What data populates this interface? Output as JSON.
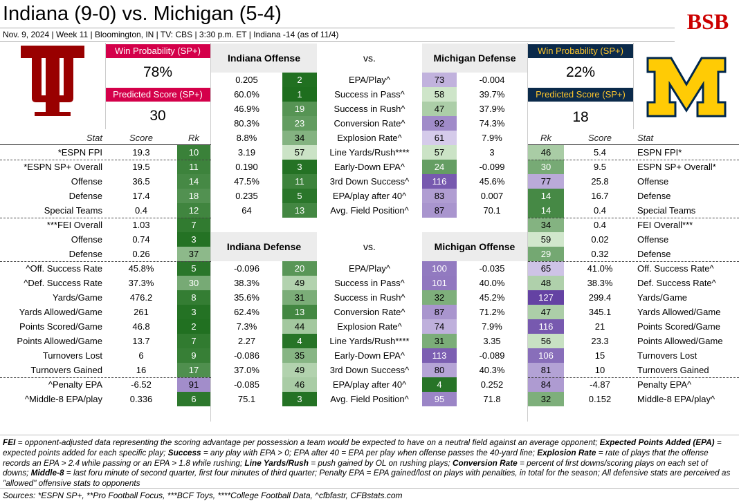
{
  "header": {
    "title": "Indiana (9-0) vs. Michigan (5-4)",
    "subtitle": "Nov. 9, 2024 | Week 11 | Bloomington, IN | TV: CBS | 3:30 p.m. ET | Indiana -14 (as of 11/4)",
    "logo_text": "BSB"
  },
  "indiana": {
    "win_prob_label": "Win Probability (SP+)",
    "win_prob": "78%",
    "pred_label": "Predicted Score (SP+)",
    "pred_score": "30",
    "color": "#990000"
  },
  "michigan": {
    "win_prob_label": "Win Probability (SP+)",
    "win_prob": "22%",
    "pred_label": "Predicted Score (SP+)",
    "pred_score": "18",
    "color": "#ffcb05"
  },
  "left_headers": {
    "stat": "Stat",
    "score": "Score",
    "rk": "Rk"
  },
  "right_headers": {
    "rk": "Rk",
    "score": "Score",
    "stat": "Stat"
  },
  "left_stats": [
    {
      "stat": "*ESPN FPI",
      "score": "19.3",
      "rk": "10"
    },
    {
      "stat": "*ESPN SP+ Overall",
      "score": "19.5",
      "rk": "11"
    },
    {
      "stat": "Offense",
      "score": "36.5",
      "rk": "14"
    },
    {
      "stat": "Defense",
      "score": "17.4",
      "rk": "18"
    },
    {
      "stat": "Special Teams",
      "score": "0.4",
      "rk": "12"
    },
    {
      "stat": "***FEI Overall",
      "score": "1.03",
      "rk": "7"
    },
    {
      "stat": "Offense",
      "score": "0.74",
      "rk": "3"
    },
    {
      "stat": "Defense",
      "score": "0.26",
      "rk": "37"
    },
    {
      "stat": "^Off. Success Rate",
      "score": "45.8%",
      "rk": "5"
    },
    {
      "stat": "^Def. Success Rate",
      "score": "37.3%",
      "rk": "30"
    },
    {
      "stat": "Yards/Game",
      "score": "476.2",
      "rk": "8"
    },
    {
      "stat": "Yards Allowed/Game",
      "score": "261",
      "rk": "3"
    },
    {
      "stat": "Points Scored/Game",
      "score": "46.8",
      "rk": "2"
    },
    {
      "stat": "Points Allowed/Game",
      "score": "13.7",
      "rk": "7"
    },
    {
      "stat": "Turnovers Lost",
      "score": "6",
      "rk": "9"
    },
    {
      "stat": "Turnovers Gained",
      "score": "16",
      "rk": "17"
    },
    {
      "stat": "^Penalty EPA",
      "score": "-6.52",
      "rk": "91"
    },
    {
      "stat": "^Middle-8 EPA/play",
      "score": "0.336",
      "rk": "6"
    }
  ],
  "right_stats": [
    {
      "stat": "ESPN FPI*",
      "score": "5.4",
      "rk": "46"
    },
    {
      "stat": "ESPN SP+ Overall*",
      "score": "9.5",
      "rk": "30"
    },
    {
      "stat": "Offense",
      "score": "25.8",
      "rk": "77"
    },
    {
      "stat": "Defense",
      "score": "16.7",
      "rk": "14"
    },
    {
      "stat": "Special Teams",
      "score": "0.4",
      "rk": "14"
    },
    {
      "stat": "FEI Overall***",
      "score": "0.4",
      "rk": "34"
    },
    {
      "stat": "Offense",
      "score": "0.02",
      "rk": "59"
    },
    {
      "stat": "Defense",
      "score": "0.32",
      "rk": "29"
    },
    {
      "stat": "Off. Success Rate^",
      "score": "41.0%",
      "rk": "65"
    },
    {
      "stat": "Def. Success Rate^",
      "score": "38.3%",
      "rk": "48"
    },
    {
      "stat": "Yards/Game",
      "score": "299.4",
      "rk": "127"
    },
    {
      "stat": "Yards Allowed/Game",
      "score": "345.1",
      "rk": "47"
    },
    {
      "stat": "Points Scored/Game",
      "score": "21",
      "rk": "116"
    },
    {
      "stat": "Points Allowed/Game",
      "score": "23.3",
      "rk": "56"
    },
    {
      "stat": "Turnovers Lost",
      "score": "15",
      "rk": "106"
    },
    {
      "stat": "Turnovers Gained",
      "score": "10",
      "rk": "81"
    },
    {
      "stat": "Penalty EPA^",
      "score": "-4.87",
      "rk": "84"
    },
    {
      "stat": "Middle-8 EPA/play^",
      "score": "0.152",
      "rk": "32"
    }
  ],
  "matchup1": {
    "left_title": "Indiana Offense",
    "vs": "vs.",
    "right_title": "Michigan Defense",
    "rows": [
      {
        "lval": "0.205",
        "lrk": "2",
        "stat": "EPA/Play^",
        "rrk": "73",
        "rval": "-0.004"
      },
      {
        "lval": "60.0%",
        "lrk": "1",
        "stat": "Success in Pass^",
        "rrk": "58",
        "rval": "39.7%"
      },
      {
        "lval": "46.9%",
        "lrk": "19",
        "stat": "Success in Rush^",
        "rrk": "47",
        "rval": "37.9%"
      },
      {
        "lval": "80.3%",
        "lrk": "23",
        "stat": "Conversion Rate^",
        "rrk": "92",
        "rval": "74.3%"
      },
      {
        "lval": "8.8%",
        "lrk": "34",
        "stat": "Explosion Rate^",
        "rrk": "61",
        "rval": "7.9%"
      },
      {
        "lval": "3.19",
        "lrk": "57",
        "stat": "Line Yards/Rush****",
        "rrk": "57",
        "rval": "3"
      },
      {
        "lval": "0.190",
        "lrk": "3",
        "stat": "Early-Down EPA^",
        "rrk": "24",
        "rval": "-0.099"
      },
      {
        "lval": "47.5%",
        "lrk": "11",
        "stat": "3rd Down Success^",
        "rrk": "116",
        "rval": "45.6%"
      },
      {
        "lval": "0.235",
        "lrk": "5",
        "stat": "EPA/play after 40^",
        "rrk": "83",
        "rval": "0.007"
      },
      {
        "lval": "64",
        "lrk": "13",
        "stat": "Avg. Field Position^",
        "rrk": "87",
        "rval": "70.1"
      }
    ]
  },
  "matchup2": {
    "left_title": "Indiana Defense",
    "vs": "vs.",
    "right_title": "Michigan Offense",
    "rows": [
      {
        "lval": "-0.096",
        "lrk": "20",
        "stat": "EPA/Play^",
        "rrk": "100",
        "rval": "-0.035"
      },
      {
        "lval": "38.3%",
        "lrk": "49",
        "stat": "Success in Pass^",
        "rrk": "101",
        "rval": "40.0%"
      },
      {
        "lval": "35.6%",
        "lrk": "31",
        "stat": "Success in Rush^",
        "rrk": "32",
        "rval": "45.2%"
      },
      {
        "lval": "62.4%",
        "lrk": "13",
        "stat": "Conversion Rate^",
        "rrk": "87",
        "rval": "71.2%"
      },
      {
        "lval": "7.3%",
        "lrk": "44",
        "stat": "Explosion Rate^",
        "rrk": "74",
        "rval": "7.9%"
      },
      {
        "lval": "2.27",
        "lrk": "4",
        "stat": "Line Yards/Rush****",
        "rrk": "31",
        "rval": "3.35"
      },
      {
        "lval": "-0.086",
        "lrk": "35",
        "stat": "Early-Down EPA^",
        "rrk": "113",
        "rval": "-0.089"
      },
      {
        "lval": "37.0%",
        "lrk": "49",
        "stat": "3rd Down Success^",
        "rrk": "80",
        "rval": "40.3%"
      },
      {
        "lval": "-0.085",
        "lrk": "46",
        "stat": "EPA/play after 40^",
        "rrk": "4",
        "rval": "0.252"
      },
      {
        "lval": "75.1",
        "lrk": "3",
        "stat": "Avg. Field Position^",
        "rrk": "95",
        "rval": "71.8"
      }
    ]
  },
  "notes_html_parts": [
    {
      "b": "FEI",
      "t": " = opponent-adjusted data representing the scoring advantage per possession a team would be expected to have on a neutral field against an average opponent; "
    },
    {
      "b": "Expected Points Added (EPA)",
      "t": " = expected points added for each specific play; "
    },
    {
      "b": "Success",
      "t": " = any play with EPA > 0; EPA after 40 = EPA per play when offense passes the 40-yard line; "
    },
    {
      "b": "Explosion Rate",
      "t": " = rate of plays that the offense records an EPA > 2.4 while passing or an EPA > 1.8 while rushing; "
    },
    {
      "b": "Line Yards/Rush",
      "t": " = push gained by OL on rushing plays; "
    },
    {
      "b": "Conversion Rate",
      "t": " = percent of first downs/scoring plays on each set of downs; "
    },
    {
      "b": "Middle-8",
      "t": " = last foru minute of second quarter, first four minutes of third quarter; Penalty EPA = EPA gained/lost on plays with penalties, in total for the season; All defensive stats are perceived as \"allowed\" offensive stats to opponents"
    }
  ],
  "sources": "Sources: *ESPN SP+, **Pro Football Focus, ***BCF Toys, ****College Football Data, ^cfbfastr, CFBstats.com"
}
